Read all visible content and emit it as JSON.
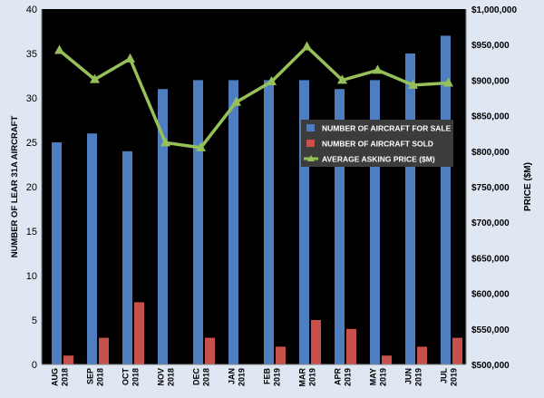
{
  "colors": {
    "page_background": "#dfe7f3",
    "plot_background": "#000000",
    "bar_for_sale": "#4f7ec0",
    "bar_sold": "#c8504b",
    "line_price": "#98c05a",
    "axis_text": "#000000"
  },
  "chart_data": {
    "type": "bar",
    "grid": false,
    "legend_position": "center-right",
    "y_left_label": "NUMBER OF LEAR 31A AIRCRAFT",
    "y_right_label": "PRICE ($M)",
    "xlabel": "",
    "y_left_lim": [
      0,
      40
    ],
    "y_left_ticks": [
      "0",
      "5",
      "10",
      "15",
      "20",
      "25",
      "30",
      "35",
      "40"
    ],
    "y_right_lim": [
      500000,
      1000000
    ],
    "y_right_ticks": [
      "$500,000",
      "$550,000",
      "$600,000",
      "$650,000",
      "$700,000",
      "$750,000",
      "$800,000",
      "$850,000",
      "$900,000",
      "$950,000",
      "$1,000,000"
    ],
    "categories": [
      [
        "AUG",
        "2018"
      ],
      [
        "SEP",
        "2018"
      ],
      [
        "OCT",
        "2018"
      ],
      [
        "NOV",
        "2018"
      ],
      [
        "DEC",
        "2018"
      ],
      [
        "JAN",
        "2019"
      ],
      [
        "FEB",
        "2019"
      ],
      [
        "MAR",
        "2019"
      ],
      [
        "APR",
        "2019"
      ],
      [
        "MAY",
        "2019"
      ],
      [
        "JUN",
        "2019"
      ],
      [
        "JUL",
        "2019"
      ]
    ],
    "series": [
      {
        "name": "NUMBER OF AIRCRAFT FOR SALE",
        "type": "bar",
        "axis": "left",
        "values": [
          25,
          26,
          24,
          31,
          32,
          32,
          32,
          32,
          31,
          32,
          35,
          37
        ]
      },
      {
        "name": "NUMBER OF AIRCRAFT SOLD",
        "type": "bar",
        "axis": "left",
        "values": [
          1,
          3,
          7,
          0,
          3,
          0,
          2,
          5,
          4,
          1,
          2,
          3
        ]
      },
      {
        "name": "AVERAGE ASKING PRICE ($M)",
        "type": "line",
        "axis": "right",
        "values": [
          942000,
          901000,
          930000,
          812000,
          805000,
          869000,
          898000,
          947000,
          900000,
          914000,
          893000,
          896000
        ]
      }
    ]
  }
}
